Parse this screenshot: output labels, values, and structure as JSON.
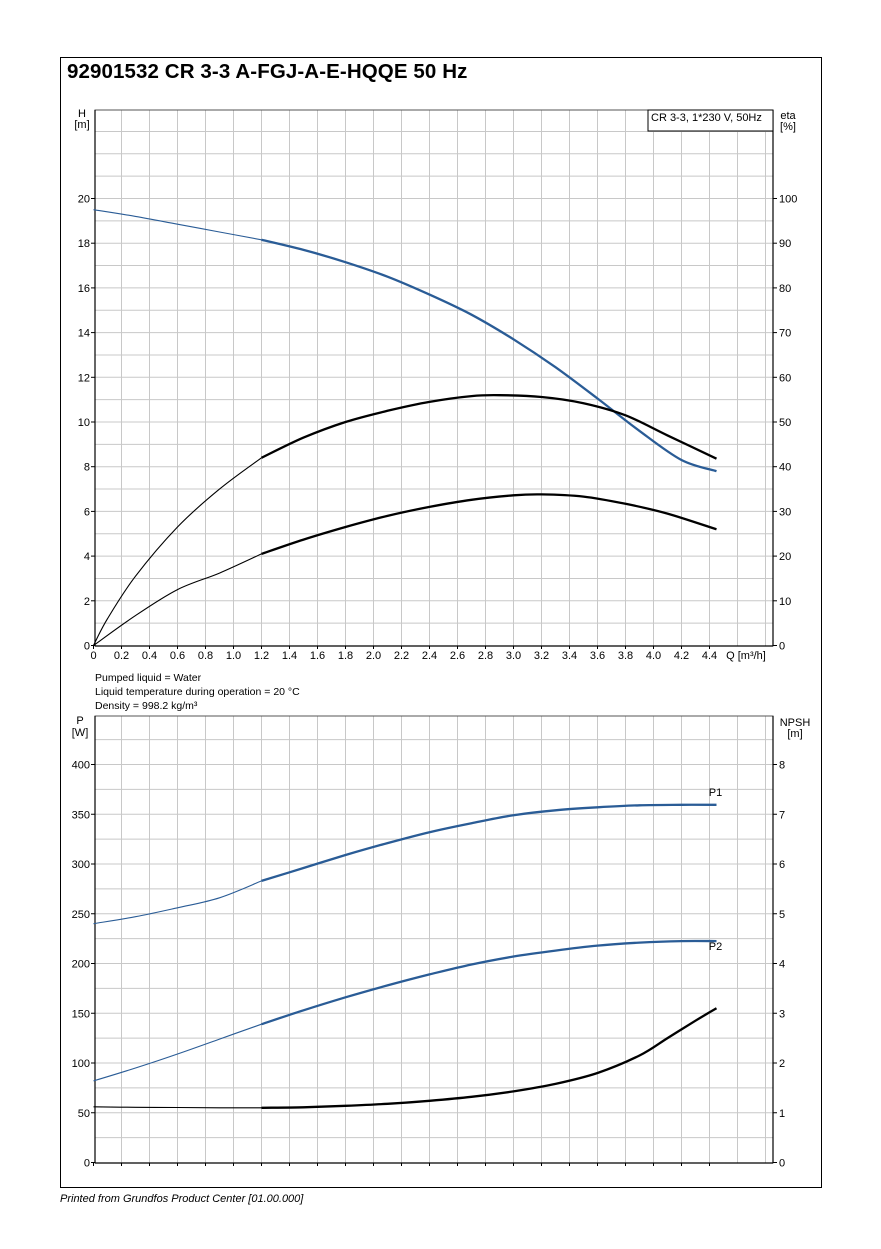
{
  "title": "92901532 CR 3-3 A-FGJ-A-E-HQQE 50 Hz",
  "footer": "Printed from Grundfos Product Center [01.00.000]",
  "liquid_info": {
    "line1": "Pumped liquid = Water",
    "line2": "Liquid temperature during operation = 20 °C",
    "line3": "Density = 998.2 kg/m³"
  },
  "colors": {
    "blue": "#2a5c96",
    "black": "#000000",
    "grid": "#c8c8c8"
  },
  "chart_data": [
    {
      "type": "line",
      "legend_box": "CR 3-3, 1*230 V, 50Hz",
      "x_label": "Q [m³/h]",
      "xlim": [
        0,
        4.4
      ],
      "x_ticks": [
        "0",
        "0.2",
        "0.4",
        "0.6",
        "0.8",
        "1.0",
        "1.2",
        "1.4",
        "1.6",
        "1.8",
        "2.0",
        "2.2",
        "2.4",
        "2.6",
        "2.8",
        "3.0",
        "3.2",
        "3.4",
        "3.6",
        "3.8",
        "4.0",
        "4.2",
        "4.4"
      ],
      "y_left_label": [
        "H",
        "[m]"
      ],
      "ylim_left": [
        0,
        20
      ],
      "y_left_ticks": [
        "0",
        "2",
        "4",
        "6",
        "8",
        "10",
        "12",
        "14",
        "16",
        "18",
        "20"
      ],
      "y_right_label": [
        "eta",
        "[%]"
      ],
      "ylim_right": [
        0,
        100
      ],
      "y_right_ticks": [
        "0",
        "10",
        "20",
        "30",
        "40",
        "50",
        "60",
        "70",
        "80",
        "90",
        "100"
      ],
      "recommended_range": [
        1.2,
        4.45
      ],
      "series": [
        {
          "color": "blue",
          "axis": "left",
          "x": [
            0,
            0.3,
            0.6,
            0.9,
            1.2,
            1.5,
            1.8,
            2.1,
            2.4,
            2.7,
            3.0,
            3.3,
            3.6,
            3.9,
            4.2,
            4.45
          ],
          "y": [
            19.5,
            19.2,
            18.85,
            18.5,
            18.15,
            17.7,
            17.15,
            16.5,
            15.7,
            14.8,
            13.7,
            12.45,
            11.05,
            9.6,
            8.3,
            7.8
          ]
        },
        {
          "color": "black",
          "axis": "right",
          "x": [
            0,
            0.1,
            0.3,
            0.6,
            0.9,
            1.2,
            1.5,
            1.8,
            2.1,
            2.4,
            2.7,
            2.9,
            3.2,
            3.5,
            3.8,
            4.1,
            4.45
          ],
          "y": [
            0,
            6,
            15.5,
            26.5,
            35,
            42,
            46.5,
            50,
            52.5,
            54.5,
            55.8,
            56,
            55.6,
            54.2,
            51.5,
            47,
            41.8
          ]
        },
        {
          "color": "black",
          "axis": "right",
          "x": [
            0,
            0.3,
            0.6,
            0.9,
            1.2,
            1.5,
            1.8,
            2.1,
            2.4,
            2.7,
            3.0,
            3.2,
            3.5,
            3.8,
            4.1,
            4.45
          ],
          "y": [
            0,
            6.7,
            12.5,
            16.2,
            20.5,
            23.7,
            26.5,
            29,
            31,
            32.6,
            33.6,
            33.8,
            33.3,
            31.7,
            29.5,
            26
          ]
        }
      ]
    },
    {
      "type": "line",
      "x_label": "",
      "xlim": [
        0,
        4.4
      ],
      "y_left_label": [
        "P",
        "[W]"
      ],
      "ylim_left": [
        0,
        400
      ],
      "y_left_ticks": [
        "0",
        "50",
        "100",
        "150",
        "200",
        "250",
        "300",
        "350",
        "400"
      ],
      "y_right_label": [
        "NPSH",
        "[m]"
      ],
      "ylim_right": [
        0,
        8
      ],
      "y_right_ticks": [
        "0",
        "1",
        "2",
        "3",
        "4",
        "5",
        "6",
        "7",
        "8"
      ],
      "recommended_range": [
        1.2,
        4.45
      ],
      "series": [
        {
          "name": "P1",
          "color": "blue",
          "axis": "left",
          "x": [
            0,
            0.3,
            0.6,
            0.9,
            1.2,
            1.5,
            1.8,
            2.1,
            2.4,
            2.7,
            3.0,
            3.3,
            3.6,
            3.9,
            4.2,
            4.45
          ],
          "y": [
            240,
            247,
            256,
            266,
            283,
            296,
            309,
            321,
            332,
            341,
            349,
            354,
            357,
            359,
            359.5,
            359.5
          ]
        },
        {
          "name": "P2",
          "color": "blue",
          "axis": "left",
          "x": [
            0,
            0.3,
            0.6,
            0.9,
            1.2,
            1.5,
            1.8,
            2.1,
            2.4,
            2.7,
            3.0,
            3.3,
            3.6,
            3.9,
            4.2,
            4.45
          ],
          "y": [
            82,
            95,
            109,
            124,
            139,
            153,
            166,
            178,
            189,
            199,
            207,
            213,
            218,
            221,
            222.5,
            222.5
          ]
        },
        {
          "color": "black",
          "axis": "right",
          "x": [
            0,
            0.3,
            0.6,
            0.9,
            1.2,
            1.5,
            1.8,
            2.1,
            2.4,
            2.7,
            3.0,
            3.3,
            3.6,
            3.9,
            4.1,
            4.3,
            4.45
          ],
          "y": [
            1.12,
            1.11,
            1.105,
            1.1,
            1.1,
            1.11,
            1.14,
            1.18,
            1.24,
            1.32,
            1.43,
            1.58,
            1.8,
            2.15,
            2.5,
            2.85,
            3.1
          ]
        }
      ]
    }
  ]
}
